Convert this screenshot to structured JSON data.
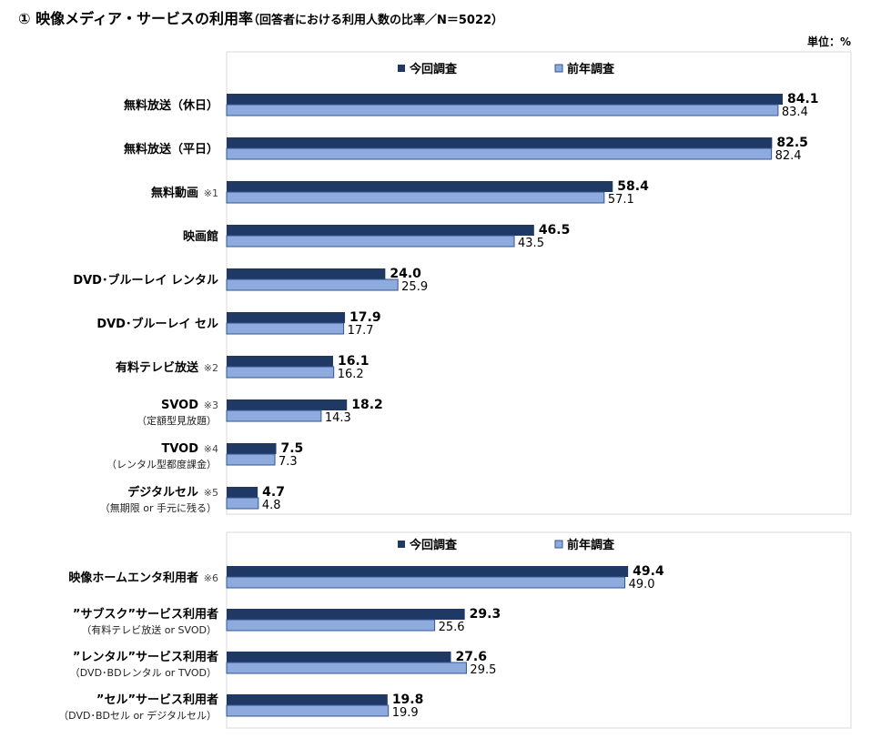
{
  "title": "① 映像メディア・サービスの利用率",
  "subtitle": "（回答者における利用人数の比率／N＝5022）",
  "unit_label": "単位：%",
  "colors": {
    "current": "#1f3864",
    "previous": "#8faadc",
    "previous_border": "#2f5597"
  },
  "chart_data": [
    {
      "type": "bar",
      "orientation": "horizontal",
      "legend": [
        "今回調査",
        "前年調査"
      ],
      "legend_placement": "top",
      "xlim": [
        0,
        90
      ],
      "categories": [
        {
          "label": "無料放送（休日）",
          "note": "",
          "sub": ""
        },
        {
          "label": "無料放送（平日）",
          "note": "",
          "sub": ""
        },
        {
          "label": "無料動画",
          "note": "※1",
          "sub": ""
        },
        {
          "label": "映画館",
          "note": "",
          "sub": ""
        },
        {
          "label": "DVD･ブルーレイ レンタル",
          "note": "",
          "sub": ""
        },
        {
          "label": "DVD･ブルーレイ セル",
          "note": "",
          "sub": ""
        },
        {
          "label": "有料テレビ放送",
          "note": "※2",
          "sub": ""
        },
        {
          "label": "SVOD",
          "note": "※3",
          "sub": "（定額型見放題）"
        },
        {
          "label": "TVOD",
          "note": "※4",
          "sub": "（レンタル型都度課金）"
        },
        {
          "label": "デジタルセル",
          "note": "※5",
          "sub": "（無期限 or 手元に残る）"
        }
      ],
      "series": [
        {
          "name": "今回調査",
          "values": [
            "84.1",
            "82.5",
            "58.4",
            "46.5",
            "24.0",
            "17.9",
            "16.1",
            "18.2",
            "7.5",
            "4.7"
          ]
        },
        {
          "name": "前年調査",
          "values": [
            "83.4",
            "82.4",
            "57.1",
            "43.5",
            "25.9",
            "17.7",
            "16.2",
            "14.3",
            "7.3",
            "4.8"
          ]
        }
      ]
    },
    {
      "type": "bar",
      "orientation": "horizontal",
      "legend": [
        "今回調査",
        "前年調査"
      ],
      "legend_placement": "top",
      "xlim": [
        0,
        75
      ],
      "categories": [
        {
          "label": "映像ホームエンタ利用者",
          "note": "※6",
          "sub": ""
        },
        {
          "label": "”サブスク”サービス利用者",
          "note": "",
          "sub": "（有料テレビ放送 or SVOD）"
        },
        {
          "label": "”レンタル”サービス利用者",
          "note": "",
          "sub": "（DVD･BDレンタル or TVOD）"
        },
        {
          "label": "”セル”サービス利用者",
          "note": "",
          "sub": "（DVD･BDセル or デジタルセル）"
        }
      ],
      "series": [
        {
          "name": "今回調査",
          "values": [
            "49.4",
            "29.3",
            "27.6",
            "19.8"
          ]
        },
        {
          "name": "前年調査",
          "values": [
            "49.0",
            "25.6",
            "29.5",
            "19.9"
          ]
        }
      ]
    }
  ]
}
